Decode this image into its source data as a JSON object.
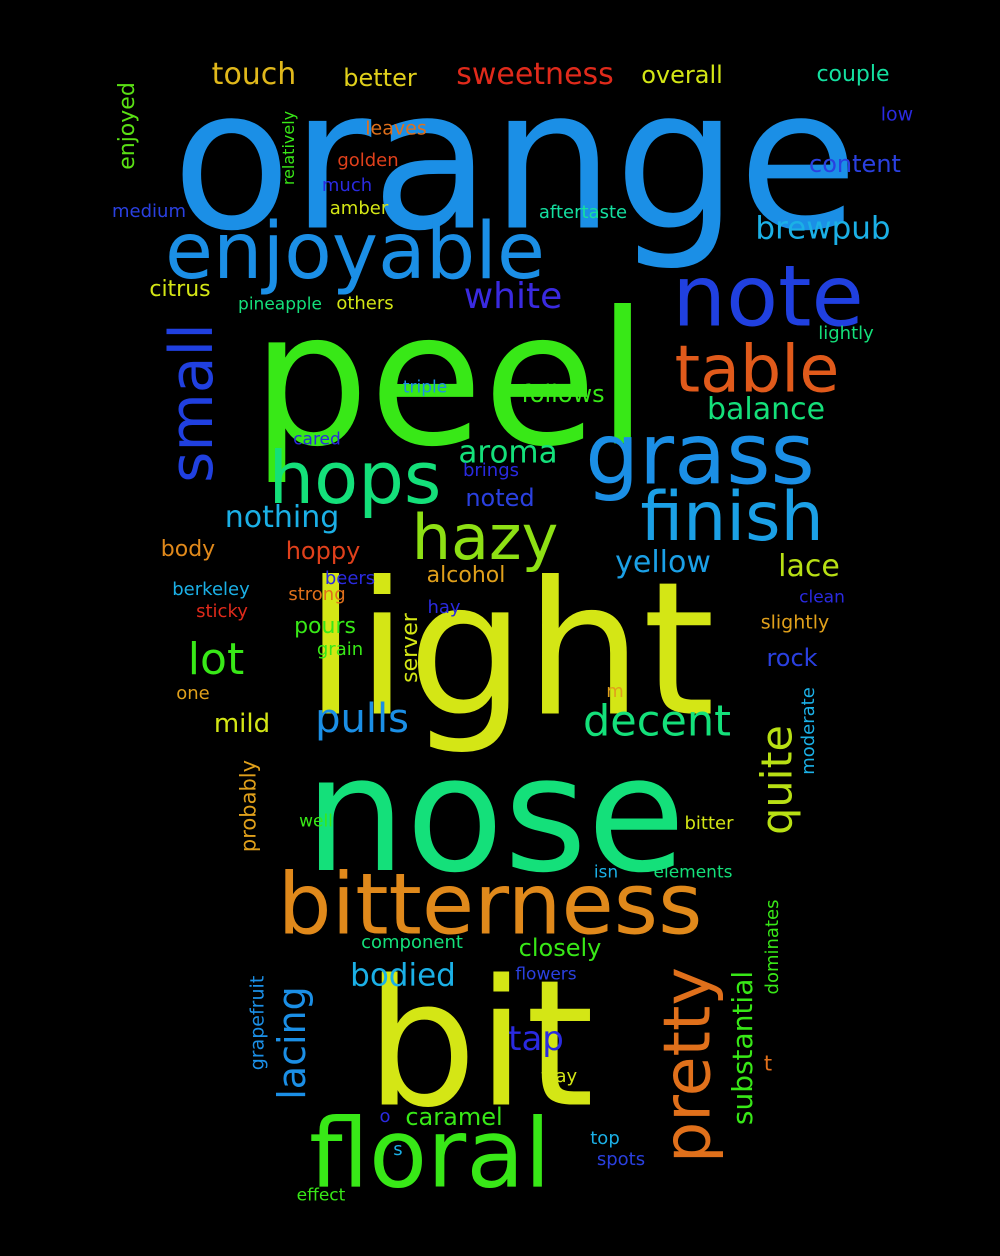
{
  "words": [
    {
      "text": "orange",
      "color": "#1b8fe6"
    },
    {
      "text": "peel",
      "color": "#38e817"
    },
    {
      "text": "light",
      "color": "#d4e615"
    },
    {
      "text": "nose",
      "color": "#14e07a"
    },
    {
      "text": "bit",
      "color": "#d4e615"
    },
    {
      "text": "bitterness",
      "color": "#e0891b"
    },
    {
      "text": "floral",
      "color": "#38e817"
    },
    {
      "text": "enjoyable",
      "color": "#1b8fe6"
    },
    {
      "text": "note",
      "color": "#2040e0"
    },
    {
      "text": "grass",
      "color": "#1b8fe6"
    },
    {
      "text": "finish",
      "color": "#1ba0e6"
    },
    {
      "text": "hops",
      "color": "#14e07a"
    },
    {
      "text": "hazy",
      "color": "#8ee014"
    },
    {
      "text": "table",
      "color": "#e05a1b"
    },
    {
      "text": "pretty",
      "color": "#e0701b"
    },
    {
      "text": "small",
      "color": "#2040e0"
    },
    {
      "text": "decent",
      "color": "#14e07a"
    },
    {
      "text": "quite",
      "color": "#b8e014"
    },
    {
      "text": "pulls",
      "color": "#1b8fe6"
    },
    {
      "text": "lot",
      "color": "#38e817"
    },
    {
      "text": "white",
      "color": "#3a2ae0"
    },
    {
      "text": "sweetness",
      "color": "#e02a1b"
    },
    {
      "text": "brewpub",
      "color": "#1bb0e6"
    },
    {
      "text": "balance",
      "color": "#14e07a"
    },
    {
      "text": "yellow",
      "color": "#1ba0e6"
    },
    {
      "text": "aroma",
      "color": "#14e07a"
    },
    {
      "text": "nothing",
      "color": "#1bb0e6"
    },
    {
      "text": "bodied",
      "color": "#1bb0e6"
    },
    {
      "text": "tap",
      "color": "#2a2ae0"
    },
    {
      "text": "lacing",
      "color": "#1b8fe6"
    },
    {
      "text": "substantial",
      "color": "#38e817"
    },
    {
      "text": "touch",
      "color": "#e0b81b"
    },
    {
      "text": "better",
      "color": "#e0d01b"
    },
    {
      "text": "overall",
      "color": "#d4e615"
    },
    {
      "text": "couple",
      "color": "#14e0a0"
    },
    {
      "text": "content",
      "color": "#2a40e0"
    },
    {
      "text": "low",
      "color": "#2a2ae0"
    },
    {
      "text": "enjoyed",
      "color": "#5ae014"
    },
    {
      "text": "relatively",
      "color": "#38e817"
    },
    {
      "text": "leaves",
      "color": "#e0701b"
    },
    {
      "text": "golden",
      "color": "#e0401b"
    },
    {
      "text": "much",
      "color": "#2a2ae0"
    },
    {
      "text": "amber",
      "color": "#d4e615"
    },
    {
      "text": "medium",
      "color": "#2a40e0"
    },
    {
      "text": "aftertaste",
      "color": "#14e0a0"
    },
    {
      "text": "citrus",
      "color": "#d4e615"
    },
    {
      "text": "pineapple",
      "color": "#14e07a"
    },
    {
      "text": "others",
      "color": "#d4e615"
    },
    {
      "text": "lightly",
      "color": "#14e07a"
    },
    {
      "text": "triple",
      "color": "#1b8fe6"
    },
    {
      "text": "follows",
      "color": "#38e817"
    },
    {
      "text": "cared",
      "color": "#2a2ae0"
    },
    {
      "text": "brings",
      "color": "#2a2ae0"
    },
    {
      "text": "noted",
      "color": "#2a40e0"
    },
    {
      "text": "body",
      "color": "#e0891b"
    },
    {
      "text": "hoppy",
      "color": "#e0401b"
    },
    {
      "text": "alcohol",
      "color": "#e0a01b"
    },
    {
      "text": "lace",
      "color": "#b8e014"
    },
    {
      "text": "berkeley",
      "color": "#1bb0e6"
    },
    {
      "text": "beers",
      "color": "#2a2ae0"
    },
    {
      "text": "sticky",
      "color": "#e02a1b"
    },
    {
      "text": "strong",
      "color": "#e0701b"
    },
    {
      "text": "hay",
      "color": "#2a2ae0"
    },
    {
      "text": "clean",
      "color": "#2a2ae0"
    },
    {
      "text": "slightly",
      "color": "#e0a01b"
    },
    {
      "text": "pours",
      "color": "#38e817"
    },
    {
      "text": "grain",
      "color": "#38e817"
    },
    {
      "text": "server",
      "color": "#d4e615"
    },
    {
      "text": "rock",
      "color": "#2a40e0"
    },
    {
      "text": "one",
      "color": "#e0a01b"
    },
    {
      "text": "m",
      "color": "#e0a01b"
    },
    {
      "text": "mild",
      "color": "#d4e615"
    },
    {
      "text": "moderate",
      "color": "#1bb0e6"
    },
    {
      "text": "probably",
      "color": "#e0a01b"
    },
    {
      "text": "well",
      "color": "#38e817"
    },
    {
      "text": "bitter",
      "color": "#d4e615"
    },
    {
      "text": "isn",
      "color": "#1bb0e6"
    },
    {
      "text": "elements",
      "color": "#14e07a"
    },
    {
      "text": "dominates",
      "color": "#38e817"
    },
    {
      "text": "component",
      "color": "#14e07a"
    },
    {
      "text": "closely",
      "color": "#38e817"
    },
    {
      "text": "grapefruit",
      "color": "#1b8fe6"
    },
    {
      "text": "flowers",
      "color": "#2a40e0"
    },
    {
      "text": "t",
      "color": "#e0701b"
    },
    {
      "text": "way",
      "color": "#d4e615"
    },
    {
      "text": "o",
      "color": "#2a2ae0"
    },
    {
      "text": "caramel",
      "color": "#38e817"
    },
    {
      "text": "top",
      "color": "#1bb0e6"
    },
    {
      "text": "s",
      "color": "#1bb0e6"
    },
    {
      "text": "spots",
      "color": "#2a40e0"
    },
    {
      "text": "effect",
      "color": "#38e817"
    }
  ]
}
